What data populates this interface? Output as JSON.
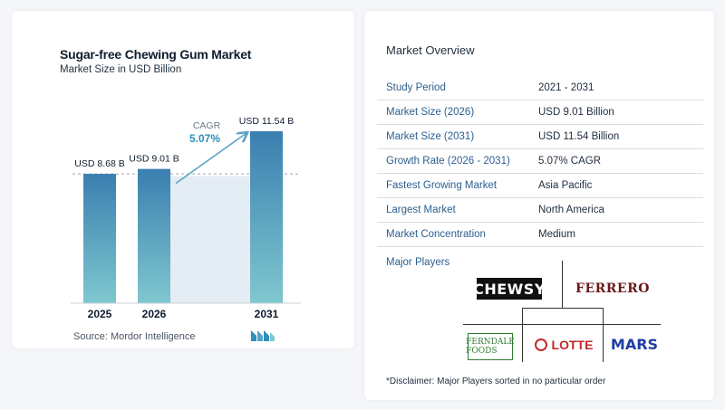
{
  "chart_data": {
    "type": "bar",
    "title": "Sugar-free Chewing Gum Market",
    "subtitle": "Market Size in USD Billion",
    "categories": [
      "2025",
      "2026",
      "2031"
    ],
    "values": [
      8.68,
      9.01,
      11.54
    ],
    "data_labels": [
      "USD 8.68 B",
      "USD 9.01 B",
      "USD 11.54 B"
    ],
    "annotation": {
      "label": "CAGR",
      "value": "5.07%"
    },
    "reference_line": 8.68,
    "ylim": [
      0,
      12
    ],
    "grid": false,
    "colors": {
      "bar_top": "#3a7fb0",
      "bar_bottom": "#7fc7cf",
      "shade": "#e4ecf4",
      "arrow": "#5ba4c9",
      "cagr": "#2d8fbe"
    }
  },
  "source": "Source:  Mordor Intelligence",
  "overview": {
    "title": "Market Overview",
    "rows": [
      {
        "key": "Study Period",
        "value": "2021 - 2031"
      },
      {
        "key": "Market Size (2026)",
        "value": "USD 9.01 Billion"
      },
      {
        "key": "Market Size (2031)",
        "value": "USD 11.54 Billion"
      },
      {
        "key": "Growth Rate (2026 - 2031)",
        "value": "5.07% CAGR"
      },
      {
        "key": "Fastest Growing Market",
        "value": "Asia Pacific"
      },
      {
        "key": "Largest Market",
        "value": "North America"
      },
      {
        "key": "Market Concentration",
        "value": "Medium"
      }
    ]
  },
  "players": {
    "title": "Major Players",
    "brands": [
      "CHEWSY",
      "FERRERO",
      "FERNDALE FOODS",
      "LOTTE",
      "MARS"
    ]
  },
  "disclaimer": "*Disclaimer: Major Players sorted in no particular order"
}
